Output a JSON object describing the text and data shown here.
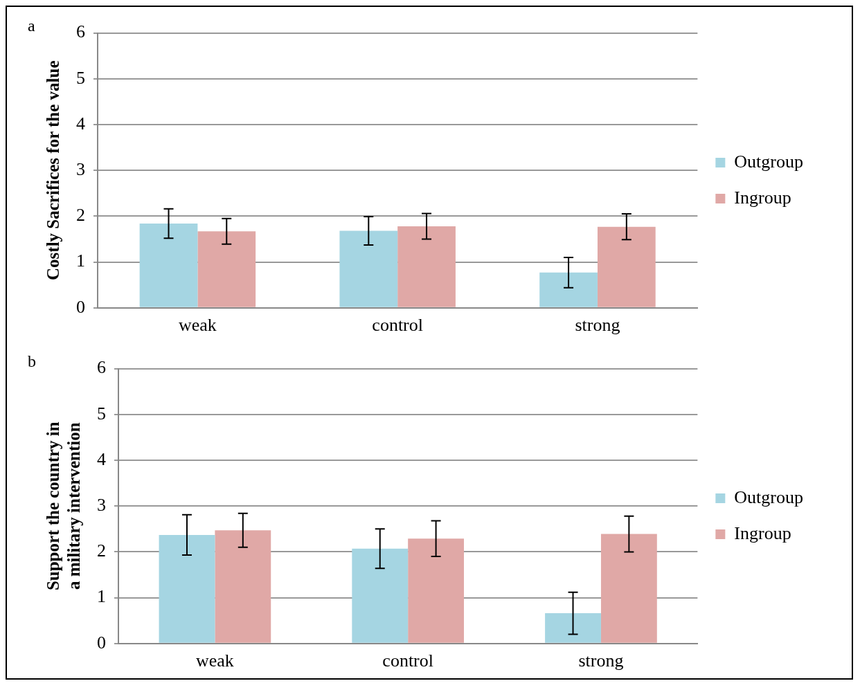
{
  "chart_data": [
    {
      "type": "bar",
      "ylabel": "Costly Sacrifices for the value",
      "annotations": [
        "a"
      ],
      "categories": [
        "weak",
        "control",
        "strong"
      ],
      "series": [
        {
          "name": "Outgroup",
          "color": "#a5d5e2",
          "values": [
            1.84,
            1.68,
            0.77
          ],
          "errors": [
            0.32,
            0.31,
            0.33
          ]
        },
        {
          "name": "Ingroup",
          "color": "#e0a8a6",
          "values": [
            1.67,
            1.78,
            1.77
          ],
          "errors": [
            0.28,
            0.28,
            0.28
          ]
        }
      ],
      "ylim": [
        0,
        6
      ],
      "yticks": [
        0,
        1,
        2,
        3,
        4,
        5,
        6
      ],
      "grid": "y",
      "legend": "right"
    },
    {
      "type": "bar",
      "ylabel": "Support the country in a military intervention",
      "annotations": [
        "b"
      ],
      "categories": [
        "weak",
        "control",
        "strong"
      ],
      "series": [
        {
          "name": "Outgroup",
          "color": "#a5d5e2",
          "values": [
            2.37,
            2.07,
            0.66
          ],
          "errors": [
            0.44,
            0.43,
            0.46
          ]
        },
        {
          "name": "Ingroup",
          "color": "#e0a8a6",
          "values": [
            2.47,
            2.29,
            2.39
          ],
          "errors": [
            0.37,
            0.39,
            0.39
          ]
        }
      ],
      "ylim": [
        0,
        6
      ],
      "yticks": [
        0,
        1,
        2,
        3,
        4,
        5,
        6
      ],
      "grid": "y",
      "legend": "right"
    }
  ]
}
